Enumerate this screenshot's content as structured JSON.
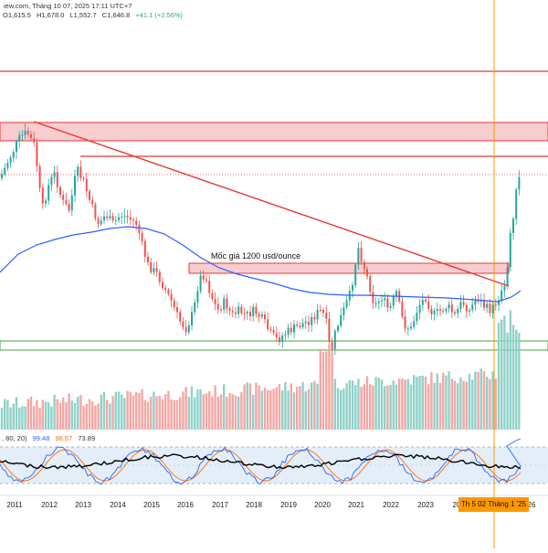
{
  "header": {
    "source_line": "iew.com, Tháng 10 07, 2025 17:11 UTC+7",
    "ohlc": {
      "open": "O1,615.5",
      "high": "H1,678.0",
      "low": "L1,552.7",
      "close": "C1,646.8",
      "change": "+41.1 (+2.56%)"
    },
    "osc_params": ", 80, 20)",
    "osc_v1": "99.48",
    "osc_v2": "96.57",
    "osc_v3": "73.89"
  },
  "annotation": "Mốc giá 1200 usd/ounce",
  "cursor_label": "Th 5 02 Tháng 1 '25",
  "x_axis_labels": [
    "2011",
    "2012",
    "2013",
    "2014",
    "2015",
    "2016",
    "2017",
    "2018",
    "2019",
    "2020",
    "2021",
    "2022",
    "2023",
    "20",
    "26"
  ],
  "colors": {
    "up": "#26a69a",
    "down": "#ef5350",
    "ma": "#2962ff",
    "trendline": "#e53935",
    "zone_fill": "#f8cdd0",
    "support": "#43a047",
    "cursor": "#ff9800",
    "osc_fast": "#2962ff",
    "osc_slow": "#ff6d00",
    "osc_line": "#000000"
  },
  "chart_data": {
    "type": "candlestick",
    "title": "",
    "x_range": [
      2010.6,
      2026.2
    ],
    "y_range_approx": [
      1000,
      2150
    ],
    "annotations": [
      "Mốc giá 1200 usd/ounce"
    ],
    "zones": [
      {
        "type": "resistance-band",
        "from": 1880,
        "to": 1920
      },
      {
        "type": "resistance-line",
        "value": 2075
      },
      {
        "type": "resistance-line",
        "value": 1795
      },
      {
        "type": "resistance-line-dotted",
        "value": 1680
      },
      {
        "type": "price-band",
        "label": "Mốc giá 1200 usd/ounce",
        "from": 1200,
        "to": 1240
      }
    ],
    "trendline": [
      {
        "x": 2011.7,
        "y": 1920
      },
      {
        "x": 2024.9,
        "y": 1255
      }
    ],
    "last_candle": {
      "open": 1615.5,
      "high": 1678.0,
      "low": 1552.7,
      "close": 1646.8
    }
  }
}
